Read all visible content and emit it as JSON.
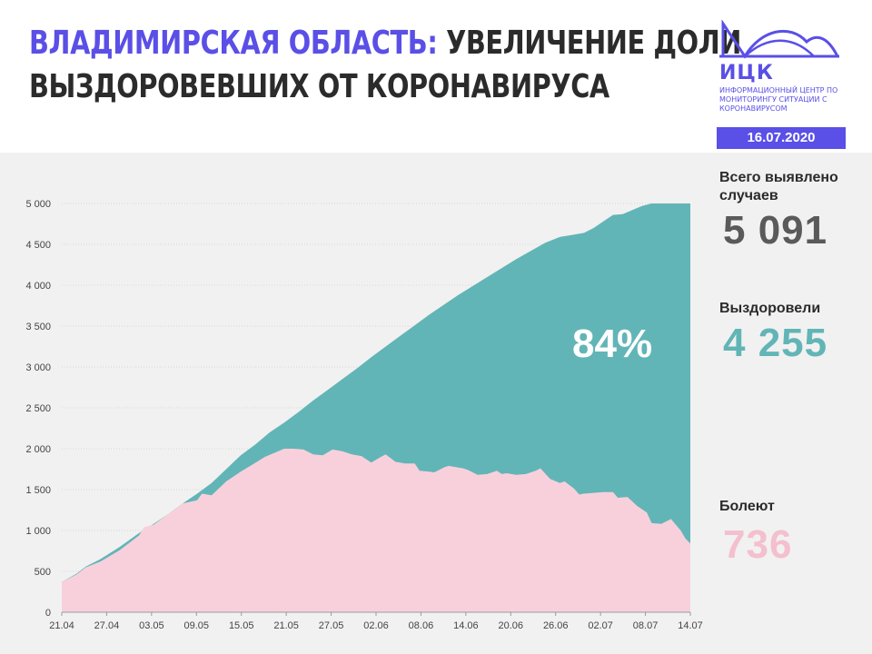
{
  "header": {
    "title_highlight": "ВЛАДИМИРСКАЯ ОБЛАСТЬ:",
    "title_rest_line1": " УВЕЛИЧЕНИЕ ДОЛИ",
    "title_line2": "ВЫЗДОРОВЕВШИХ ОТ КОРОНАВИРУСА",
    "date": "16.07.2020"
  },
  "logo": {
    "name": "ИЦК",
    "subtitle": "информационный центр по мониторингу ситуации с коронавирусом",
    "icon": "mountain-arc-logo-icon"
  },
  "stats": {
    "total_label": "Всего выявлено случаев",
    "total_value": "5 091",
    "recovered_label": "Выздоровели",
    "recovered_value": "4 255",
    "sick_label": "Болеют",
    "sick_value": "736",
    "recovered_share": "84%"
  },
  "colors": {
    "accent": "#5a4fe6",
    "total_value": "#5a5a5a",
    "recovered": "#62b5b6",
    "sick": "#f8d0dc",
    "sick_value": "#f4bfce",
    "panel_bg": "#f1f1f1"
  },
  "chart_data": {
    "type": "area",
    "x_ticks": [
      "21.04",
      "27.04",
      "03.05",
      "09.05",
      "15.05",
      "21.05",
      "27.05",
      "02.06",
      "08.06",
      "14.06",
      "20.06",
      "26.06",
      "02.07",
      "08.07",
      "14.07"
    ],
    "y_ticks": [
      "0",
      "500",
      "1 000",
      "1 500",
      "2 000",
      "2 500",
      "3 000",
      "3 500",
      "4 000",
      "4 500",
      "5 000"
    ],
    "ylim": [
      0,
      5000
    ],
    "grid": true,
    "series": [
      {
        "role": "total",
        "points": [
          [
            0,
            370
          ],
          [
            3,
            470
          ],
          [
            5,
            560
          ],
          [
            8,
            650
          ],
          [
            12,
            800
          ],
          [
            16,
            970
          ],
          [
            19,
            1080
          ],
          [
            22,
            1200
          ],
          [
            25,
            1330
          ],
          [
            28,
            1450
          ],
          [
            31,
            1580
          ],
          [
            34,
            1750
          ],
          [
            37,
            1920
          ],
          [
            40,
            2050
          ],
          [
            43,
            2200
          ],
          [
            46,
            2320
          ],
          [
            49,
            2450
          ],
          [
            52,
            2590
          ],
          [
            55,
            2720
          ],
          [
            58,
            2850
          ],
          [
            61,
            2980
          ],
          [
            64,
            3120
          ],
          [
            67,
            3250
          ],
          [
            70,
            3380
          ],
          [
            73,
            3510
          ],
          [
            76,
            3640
          ],
          [
            79,
            3760
          ],
          [
            82,
            3880
          ],
          [
            85,
            3990
          ],
          [
            88,
            4100
          ],
          [
            91,
            4210
          ],
          [
            94,
            4320
          ],
          [
            97,
            4420
          ],
          [
            100,
            4520
          ],
          [
            103,
            4590
          ],
          [
            106,
            4620
          ],
          [
            108,
            4640
          ],
          [
            110,
            4700
          ],
          [
            112,
            4780
          ],
          [
            114,
            4860
          ],
          [
            116,
            4870
          ],
          [
            118,
            4920
          ],
          [
            120,
            4970
          ],
          [
            122,
            5000
          ],
          [
            123,
            5000
          ]
        ]
      },
      {
        "role": "sick",
        "points": [
          [
            0,
            370
          ],
          [
            3,
            460
          ],
          [
            5,
            550
          ],
          [
            8,
            620
          ],
          [
            12,
            760
          ],
          [
            16,
            940
          ],
          [
            17,
            1040
          ],
          [
            19,
            1070
          ],
          [
            22,
            1200
          ],
          [
            25,
            1330
          ],
          [
            28,
            1370
          ],
          [
            29,
            1450
          ],
          [
            31,
            1430
          ],
          [
            34,
            1600
          ],
          [
            37,
            1720
          ],
          [
            39,
            1790
          ],
          [
            42,
            1900
          ],
          [
            46,
            2000
          ],
          [
            48,
            2000
          ],
          [
            50,
            1990
          ],
          [
            52,
            1930
          ],
          [
            54,
            1920
          ],
          [
            56,
            1990
          ],
          [
            58,
            1970
          ],
          [
            60,
            1930
          ],
          [
            62,
            1910
          ],
          [
            64,
            1830
          ],
          [
            66,
            1900
          ],
          [
            67,
            1930
          ],
          [
            69,
            1840
          ],
          [
            71,
            1820
          ],
          [
            73,
            1820
          ],
          [
            74,
            1730
          ],
          [
            76,
            1720
          ],
          [
            77,
            1710
          ],
          [
            79,
            1770
          ],
          [
            80,
            1790
          ],
          [
            83,
            1760
          ],
          [
            84,
            1740
          ],
          [
            86,
            1680
          ],
          [
            88,
            1690
          ],
          [
            90,
            1730
          ],
          [
            91,
            1690
          ],
          [
            92,
            1700
          ],
          [
            94,
            1680
          ],
          [
            96,
            1690
          ],
          [
            98,
            1730
          ],
          [
            99,
            1760
          ],
          [
            101,
            1630
          ],
          [
            103,
            1580
          ],
          [
            104,
            1600
          ],
          [
            106,
            1510
          ],
          [
            107,
            1440
          ],
          [
            108,
            1450
          ],
          [
            110,
            1460
          ],
          [
            112,
            1470
          ],
          [
            113,
            1470
          ],
          [
            114,
            1470
          ],
          [
            115,
            1400
          ],
          [
            117,
            1410
          ],
          [
            119,
            1300
          ],
          [
            121,
            1220
          ],
          [
            122,
            1090
          ],
          [
            124,
            1080
          ],
          [
            126,
            1140
          ],
          [
            128,
            1000
          ],
          [
            129,
            900
          ],
          [
            130,
            840
          ]
        ]
      }
    ]
  }
}
